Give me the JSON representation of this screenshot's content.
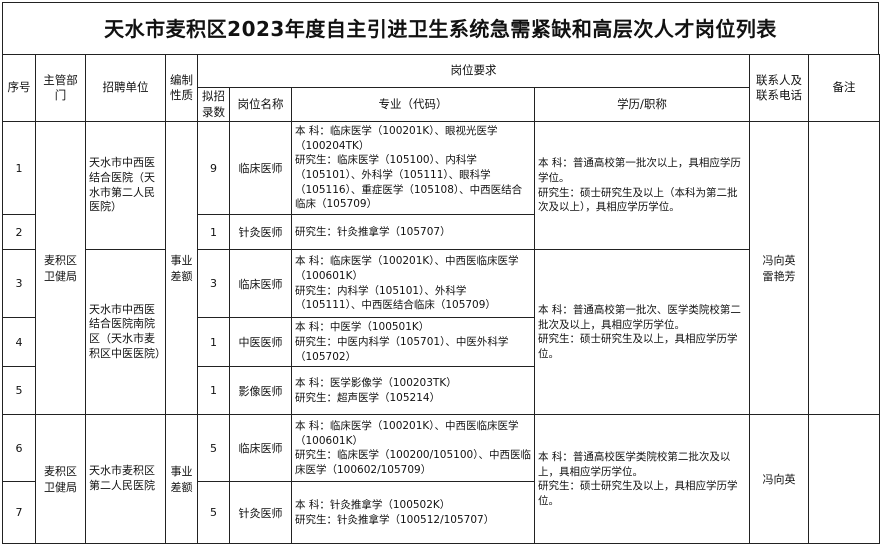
{
  "title": "天水市麦积区2023年度自主引进卫生系统急需紧缺和高层次人才岗位列表",
  "headers": {
    "seq": "序号",
    "dept": "主管部门",
    "unit": "招聘单位",
    "nature": "编制性质",
    "requirements": "岗位要求",
    "count": "拟招录数",
    "position": "岗位名称",
    "major": "专业（代码）",
    "education": "学历/职称",
    "contact": "联系人及联系电话",
    "remark": "备注"
  },
  "groups": [
    {
      "dept": "麦积区卫健局",
      "nature": "事业差额",
      "contact": "冯向英\n雷艳芳",
      "remark": "",
      "units": [
        {
          "name": "天水市中西医结合医院（天水市第二人民医院）",
          "education": "本 科：普通高校第一批次以上，具相应学历学位。\n研究生：硕士研究生及以上（本科为第二批次及以上），具相应学历学位。"
        },
        {
          "name": "天水市中西医结合医院南院区（天水市麦积区中医医院）",
          "education": "本 科：普通高校第一批次、医学类院校第二批次及以上，具相应学历学位。\n研究生：硕士研究生及以上，具相应学历学位。"
        }
      ]
    },
    {
      "dept": "麦积区卫健局",
      "nature": "事业差额",
      "contact": "冯向英",
      "remark": "",
      "units": [
        {
          "name": "天水市麦积区第二人民医院",
          "education": "本 科：普通高校医学类院校第二批次及以上，具相应学历学位。\n研究生：硕士研究生及以上，具相应学历学位。"
        }
      ]
    }
  ],
  "rows": [
    {
      "seq": "1",
      "count": "9",
      "position": "临床医师",
      "major": "本 科：临床医学（100201K）、眼视光医学（100204TK）\n研究生：临床医学（105100）、内科学（105101）、外科学（105111）、眼科学（105116）、重症医学（105108）、中西医结合临床（105709）"
    },
    {
      "seq": "2",
      "count": "1",
      "position": "针灸医师",
      "major": "研究生：针灸推拿学（105707）"
    },
    {
      "seq": "3",
      "count": "3",
      "position": "临床医师",
      "major": "本 科：临床医学（100201K）、中西医临床医学（100601K）\n研究生：内科学（105101）、外科学（105111）、中西医结合临床（105709）"
    },
    {
      "seq": "4",
      "count": "1",
      "position": "中医医师",
      "major": "本 科：中医学（100501K）\n研究生：中医内科学（105701）、中医外科学（105702）"
    },
    {
      "seq": "5",
      "count": "1",
      "position": "影像医师",
      "major": "本 科：医学影像学（100203TK）\n研究生：超声医学（105214）"
    },
    {
      "seq": "6",
      "count": "5",
      "position": "临床医师",
      "major": "本 科：临床医学（100201K）、中西医临床医学（100601K）\n研究生：临床医学（100200/105100）、中西医临床医学（100602/105709）"
    },
    {
      "seq": "7",
      "count": "5",
      "position": "针灸医师",
      "major": "本 科：针灸推拿学（100502K）\n研究生：针灸推拿学（100512/105707）"
    }
  ]
}
